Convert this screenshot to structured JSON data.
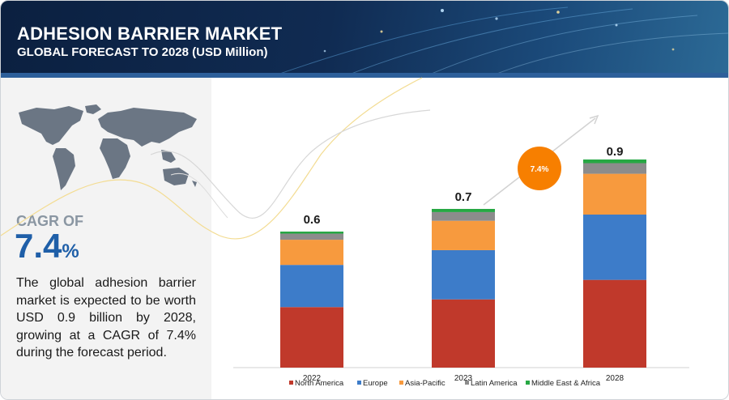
{
  "header": {
    "title": "ADHESION BARRIER MARKET",
    "subtitle": "GLOBAL FORECAST TO 2028 (USD Million)"
  },
  "left": {
    "cagr_label": "CAGR OF",
    "cagr_number": "7.4",
    "cagr_unit": "%",
    "description": "The global adhesion barrier market is expected to be worth USD 0.9 billion by 2028, growing at a CAGR of 7.4% during the forecast period."
  },
  "bubble": {
    "label": "7.4%",
    "color": "#f77f00"
  },
  "chart_data": {
    "type": "bar",
    "stacked": true,
    "categories": [
      "2022",
      "2023",
      "2028"
    ],
    "totals": [
      "0.6",
      "0.7",
      "0.9"
    ],
    "total_values": [
      0.6,
      0.7,
      0.9
    ],
    "series": [
      {
        "name": "North America",
        "color": "#c0392b",
        "shares": [
          0.445,
          0.43,
          0.43
        ]
      },
      {
        "name": "Europe",
        "color": "#3d7cc9",
        "shares": [
          0.31,
          0.31,
          0.32
        ]
      },
      {
        "name": "Asia-Pacific",
        "color": "#f79a3e",
        "shares": [
          0.185,
          0.185,
          0.2
        ]
      },
      {
        "name": "Latin America",
        "color": "#8c8c8c",
        "shares": [
          0.045,
          0.055,
          0.052
        ]
      },
      {
        "name": "Middle East & Africa",
        "color": "#27a844",
        "shares": [
          0.015,
          0.02,
          0.018
        ]
      }
    ],
    "ylim": [
      0,
      1.1
    ],
    "grid": false,
    "legend_placement": "bottom"
  }
}
